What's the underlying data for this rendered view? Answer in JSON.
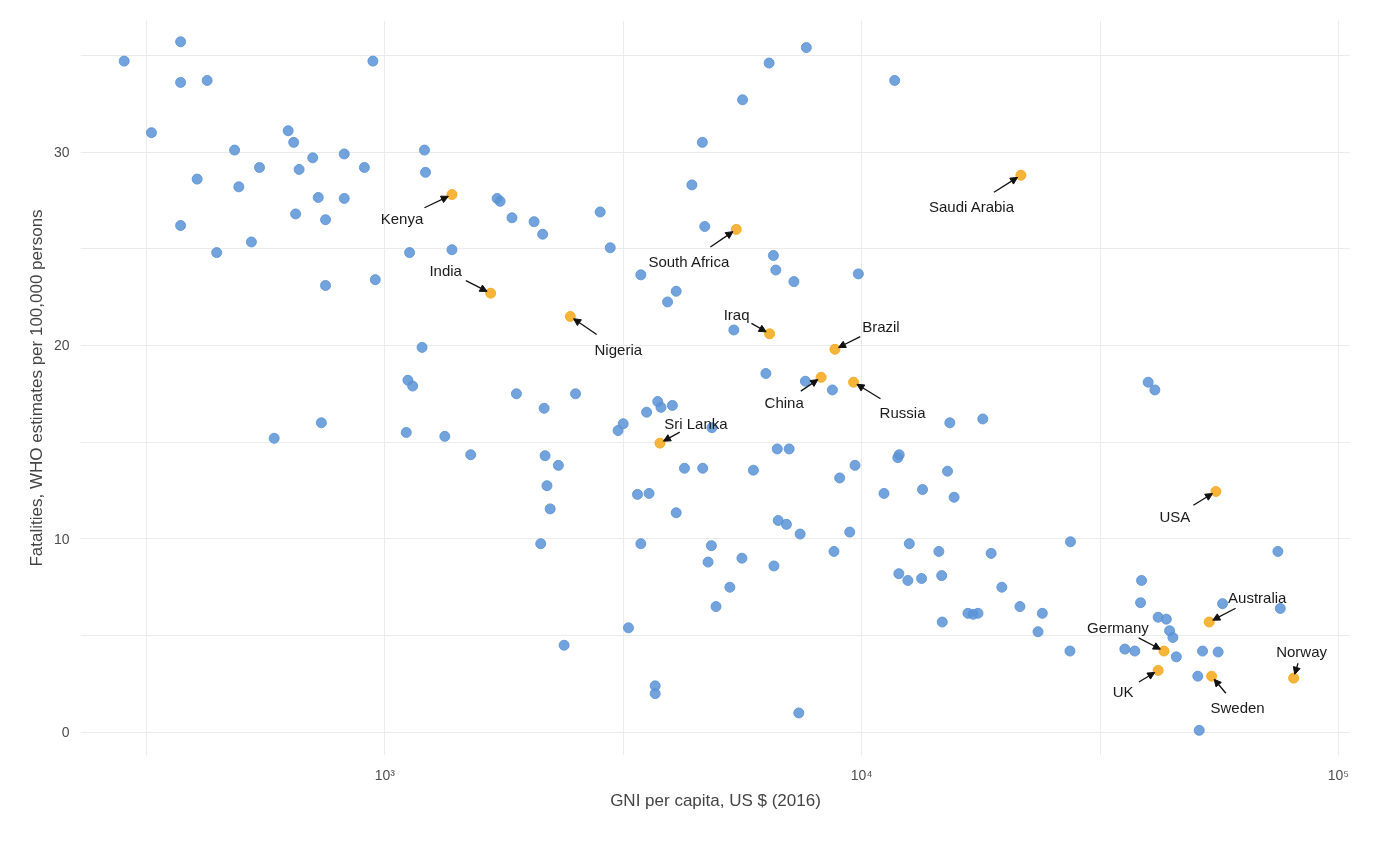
{
  "chart_data": {
    "type": "scatter",
    "log": "x",
    "grid": true,
    "marker": "circle",
    "xlabel": "GNI per capita, US $ (2016)",
    "ylabel": "Fatalities, WHO estimates per 100,000 persons",
    "xlim": [
      230,
      106000
    ],
    "ylim": [
      -1.2,
      36.8
    ],
    "xticks": [
      {
        "value": 316.2,
        "label": null
      },
      {
        "value": 1000,
        "label": "10³"
      },
      {
        "value": 3162,
        "label": null
      },
      {
        "value": 10000,
        "label": "10⁴"
      },
      {
        "value": 31623,
        "label": null
      },
      {
        "value": 100000,
        "label": "10⁵"
      }
    ],
    "yticks": [
      0,
      {
        "value": 5,
        "label": null
      },
      10,
      {
        "value": 15,
        "label": null
      },
      20,
      {
        "value": 25,
        "label": null
      },
      30,
      {
        "value": 35,
        "label": null
      }
    ],
    "series": [
      {
        "color": "#5b93d6",
        "x": [
          284,
          373,
          373,
          424,
          944,
          324,
          627,
          644,
          484,
          1211,
          706,
          822,
          546,
          661,
          906,
          1217,
          404,
          494,
          725,
          822,
          1720,
          1745,
          650,
          751,
          373,
          525,
          444,
          1127,
          1383,
          751,
          955,
          1197,
          1118,
          1144,
          736,
          586,
          1109,
          1336,
          1514,
          7656,
          6397,
          11730,
          5627,
          4634,
          4406,
          1848,
          2056,
          2143,
          2829,
          2970,
          4688,
          6531,
          6607,
          7211,
          9843,
          3443,
          4084,
          3917,
          5395,
          6298,
          7621,
          8684,
          1888,
          2512,
          2158,
          3736,
          4009,
          3540,
          3795,
          3162,
          3084,
          4853,
          6653,
          7047,
          2168,
          11990,
          2312,
          2188,
          2222,
          2123,
          4250,
          4642,
          5929,
          8995,
          9685,
          3388,
          3582,
          4084,
          3443,
          6684,
          6955,
          7430,
          9441,
          8750,
          4840,
          4764,
          5610,
          6548,
          5292,
          4950,
          3243,
          2377,
          3690,
          3690,
          7383,
          11910,
          11140,
          13420,
          12590,
          11970,
          12500,
          13360,
          39900,
          41210,
          15310,
          17950,
          15140,
          15630,
          27420,
          74650,
          14520,
          18690,
          14720,
          19680,
          38640,
          38460,
          21480,
          23930,
          16710,
          17140,
          17540,
          14760,
          23440,
          57150,
          75520,
          41870,
          43550,
          44250,
          44960,
          27350,
          35650,
          37400,
          45710,
          51880,
          55940,
          50700,
          51050
        ],
        "values": [
          34.7,
          35.7,
          33.6,
          33.7,
          34.7,
          31.0,
          31.1,
          30.5,
          30.1,
          30.1,
          29.7,
          29.9,
          29.2,
          29.1,
          29.2,
          28.95,
          28.6,
          28.2,
          27.65,
          27.6,
          27.6,
          27.45,
          26.8,
          26.5,
          26.2,
          25.35,
          24.8,
          24.8,
          24.95,
          23.1,
          23.4,
          19.9,
          18.2,
          17.9,
          16.0,
          15.2,
          15.5,
          15.3,
          14.35,
          35.4,
          34.6,
          33.7,
          32.7,
          30.5,
          28.3,
          26.6,
          26.4,
          25.75,
          26.9,
          25.05,
          26.15,
          24.65,
          23.9,
          23.3,
          23.7,
          23.65,
          22.8,
          22.25,
          20.8,
          18.55,
          18.15,
          17.7,
          17.5,
          17.5,
          16.75,
          17.1,
          16.9,
          16.55,
          16.8,
          15.95,
          15.6,
          15.75,
          14.65,
          14.65,
          14.3,
          14.35,
          13.8,
          12.75,
          11.55,
          9.75,
          13.65,
          13.65,
          13.55,
          13.15,
          13.8,
          12.3,
          12.35,
          11.35,
          9.75,
          10.95,
          10.75,
          10.25,
          10.35,
          9.35,
          9.65,
          8.8,
          9.0,
          8.6,
          7.5,
          6.5,
          5.4,
          4.5,
          2.4,
          2.0,
          1.0,
          14.2,
          12.35,
          12.55,
          9.75,
          8.2,
          7.85,
          7.95,
          18.1,
          17.7,
          16.0,
          16.2,
          13.5,
          12.15,
          9.85,
          9.35,
          9.35,
          9.25,
          8.1,
          7.5,
          7.85,
          6.7,
          6.5,
          6.15,
          6.15,
          6.1,
          6.15,
          5.7,
          5.2,
          6.65,
          6.4,
          5.95,
          5.85,
          5.25,
          4.9,
          4.2,
          4.3,
          4.2,
          3.9,
          4.2,
          4.15,
          2.9,
          0.1
        ]
      },
      {
        "color": "#f5a818",
        "x": [
          1383,
          1667,
          2449,
          5458,
          6412,
          8790,
          8224,
          9617,
          3776,
          21580,
          55340,
          53580,
          43060,
          41870,
          54200,
          80540
        ],
        "values": [
          27.8,
          22.7,
          21.5,
          26.0,
          20.6,
          19.8,
          18.35,
          18.1,
          14.95,
          28.8,
          12.45,
          5.7,
          4.2,
          3.2,
          2.9,
          2.8
        ]
      }
    ],
    "annotations": [
      {
        "text": "Kenya",
        "x": 1383,
        "y": 27.8
      },
      {
        "text": "India",
        "x": 1667,
        "y": 22.7
      },
      {
        "text": "Nigeria",
        "x": 2449,
        "y": 21.5
      },
      {
        "text": "South Africa",
        "x": 5458,
        "y": 26.0
      },
      {
        "text": "Iraq",
        "x": 6412,
        "y": 20.6
      },
      {
        "text": "Brazil",
        "x": 8790,
        "y": 19.8
      },
      {
        "text": "China",
        "x": 8224,
        "y": 18.35
      },
      {
        "text": "Russia",
        "x": 9617,
        "y": 18.1
      },
      {
        "text": "Sri Lanka",
        "x": 3776,
        "y": 14.95
      },
      {
        "text": "Saudi Arabia",
        "x": 21580,
        "y": 28.8
      },
      {
        "text": "USA",
        "x": 55340,
        "y": 12.45
      },
      {
        "text": "Australia",
        "x": 53580,
        "y": 5.7
      },
      {
        "text": "Germany",
        "x": 43060,
        "y": 4.2
      },
      {
        "text": "UK",
        "x": 41870,
        "y": 3.2
      },
      {
        "text": "Sweden",
        "x": 54200,
        "y": 2.9
      },
      {
        "text": "Norway",
        "x": 80540,
        "y": 2.8
      }
    ]
  }
}
